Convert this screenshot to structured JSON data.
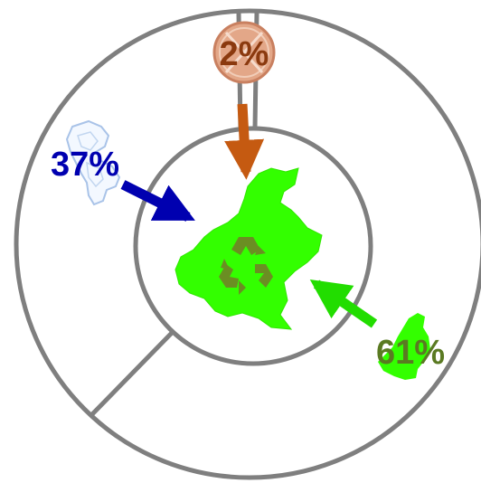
{
  "diagram": {
    "colors": {
      "ring": "#7f7f7f",
      "center_region": "#33ff00",
      "recycle_symbol": "#6b8e23",
      "origin_top": "#c55a11",
      "origin_left": "#0000b0",
      "origin_right": "#22dd00"
    },
    "flows": {
      "top": {
        "label": "2%",
        "icon": "copper-crossed-circle-icon"
      },
      "left": {
        "label": "37%",
        "icon": "italy-map-icon"
      },
      "right": {
        "label": "61%",
        "icon": "veneto-region-icon"
      }
    },
    "center": {
      "icon": "veneto-region-icon",
      "symbol": "recycle-icon"
    }
  }
}
